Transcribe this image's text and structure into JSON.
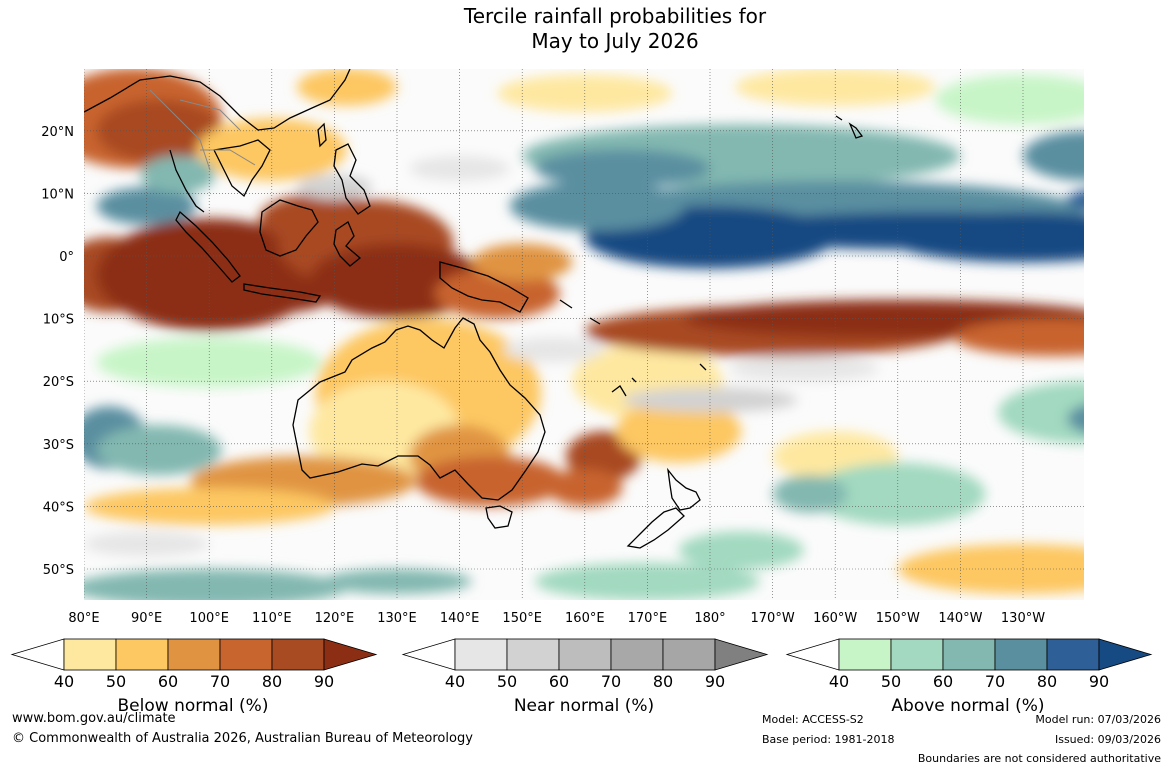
{
  "title": {
    "line1": "Tercile rainfall probabilities for",
    "line2": "May to July 2026"
  },
  "map": {
    "lat_labels": [
      "20°N",
      "10°N",
      "0°",
      "10°S",
      "20°S",
      "30°S",
      "40°S",
      "50°S"
    ],
    "lon_labels": [
      "80°E",
      "90°E",
      "100°E",
      "110°E",
      "120°E",
      "130°E",
      "140°E",
      "150°E",
      "160°E",
      "170°E",
      "180°",
      "170°W",
      "160°W",
      "150°W",
      "140°W",
      "130°W"
    ],
    "colors": {
      "ocean_base": "#fbfbfb",
      "below": [
        "#fee8a0",
        "#fdc762",
        "#e09442",
        "#c8642e",
        "#a84a22",
        "#8c2e14"
      ],
      "near": [
        "#e6e6e6",
        "#d2d2d2",
        "#bdbdbd",
        "#a8a8a8",
        "#808080"
      ],
      "above": [
        "#c8f5c8",
        "#a2d9c0",
        "#82b8b0",
        "#5a8fa0",
        "#2e5f96",
        "#164a82"
      ]
    }
  },
  "colorbars": [
    {
      "label": "Below normal (%)",
      "ticks": [
        "40",
        "50",
        "60",
        "70",
        "80",
        "90"
      ]
    },
    {
      "label": "Near normal (%)",
      "ticks": [
        "40",
        "50",
        "60",
        "70",
        "80",
        "90"
      ]
    },
    {
      "label": "Above normal (%)",
      "ticks": [
        "40",
        "50",
        "60",
        "70",
        "80",
        "90"
      ]
    }
  ],
  "footer": {
    "website": "www.bom.gov.au/climate",
    "copyright": "© Commonwealth of Australia 2026, Australian Bureau of Meteorology",
    "model": "Model: ACCESS-S2",
    "base_period": "Base period: 1981-2018",
    "model_run": "Model run: 07/03/2026",
    "issued": "Issued: 09/03/2026",
    "disclaimer": "Boundaries are not considered authoritative"
  }
}
